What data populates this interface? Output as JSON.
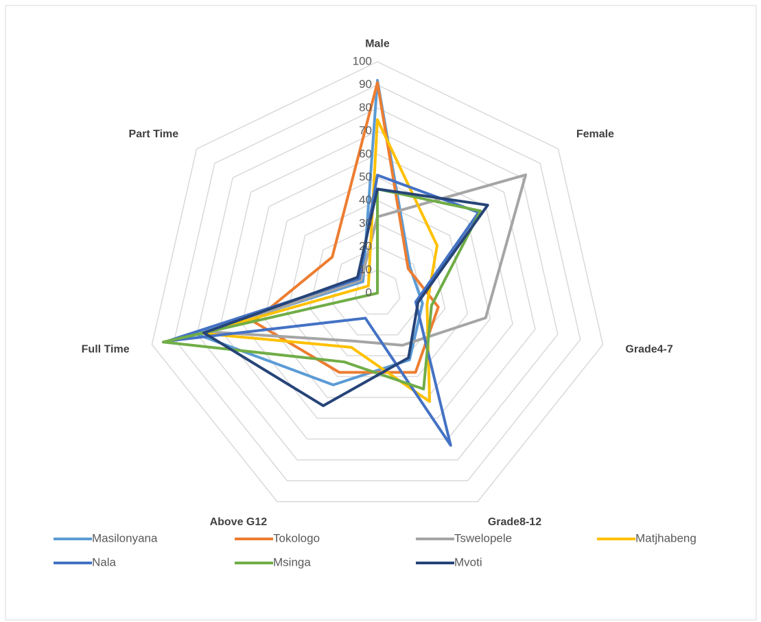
{
  "chart_data": {
    "type": "radar",
    "categories": [
      "Male",
      "Female",
      "Grade4-7",
      "Grade8-12",
      "Above G12",
      "Full Time",
      "Part Time"
    ],
    "series": [
      {
        "name": "Masilonyana",
        "color": "#5b9bd5",
        "values": [
          92,
          18,
          20,
          32,
          44,
          80,
          8
        ]
      },
      {
        "name": "Tokologo",
        "color": "#ed7d31",
        "values": [
          91,
          17,
          27,
          38,
          38,
          55,
          25
        ]
      },
      {
        "name": "Tswelopele",
        "color": "#a5a5a5",
        "values": [
          33,
          82,
          48,
          25,
          23,
          75,
          9
        ]
      },
      {
        "name": "Matjhabeng",
        "color": "#ffc000",
        "values": [
          75,
          33,
          22,
          52,
          26,
          78,
          5
        ]
      },
      {
        "name": "Nala",
        "color": "#4472c4",
        "values": [
          51,
          56,
          17,
          73,
          12,
          93,
          10
        ]
      },
      {
        "name": "Msinga",
        "color": "#70ad47",
        "values": [
          45,
          57,
          24,
          46,
          33,
          95,
          0
        ]
      },
      {
        "name": "Mvoti",
        "color": "#264478",
        "values": [
          45,
          61,
          18,
          31,
          54,
          77,
          11
        ]
      }
    ],
    "ylim": [
      0,
      100
    ],
    "yticks": [
      0,
      10,
      20,
      30,
      40,
      50,
      60,
      70,
      80,
      90,
      100
    ],
    "grid": true,
    "legend": "bottom"
  }
}
